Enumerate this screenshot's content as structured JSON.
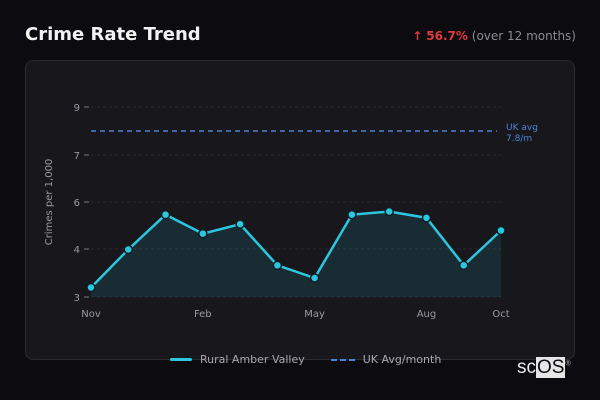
{
  "header": {
    "title": "Crime Rate Trend",
    "change_arrow": "↑",
    "change_value": "56.7%",
    "change_period": "(over 12 months)"
  },
  "colors": {
    "series": "#2bc6e0",
    "reference": "#4a84d6",
    "change_up": "#e0393e",
    "background": "#0c0b10",
    "panel": "#18171c"
  },
  "reference_label": {
    "line1": "UK avg",
    "line2": "7.8/m"
  },
  "legend": {
    "series_label": "Rural Amber Valley",
    "reference_label": "UK Avg/month"
  },
  "brand": {
    "text_a": "sc",
    "text_b": "OS",
    "mark": "®"
  },
  "chart_data": {
    "type": "line",
    "title": "Crime Rate Trend",
    "xlabel": "",
    "ylabel": "Crimes per 1,000",
    "x": [
      "Nov",
      "Dec",
      "Jan",
      "Feb",
      "Mar",
      "Apr",
      "May",
      "Jun",
      "Jul",
      "Aug",
      "Sep",
      "Oct"
    ],
    "x_tick_labels": [
      "Nov",
      "Feb",
      "May",
      "Aug",
      "Oct"
    ],
    "y_tick_labels": [
      "3",
      "4",
      "6",
      "7",
      "9"
    ],
    "ylim": [
      3,
      9
    ],
    "grid": true,
    "legend_position": "bottom",
    "series": [
      {
        "name": "Rural Amber Valley",
        "values": [
          3.3,
          4.5,
          5.6,
          5.0,
          5.3,
          4.0,
          3.6,
          5.6,
          5.7,
          5.5,
          4.0,
          5.1
        ],
        "fill": true
      }
    ],
    "reference_lines": [
      {
        "name": "UK Avg/month",
        "value": 7.8,
        "annotation": "UK avg 7.8/m",
        "style": "dashed"
      }
    ]
  }
}
